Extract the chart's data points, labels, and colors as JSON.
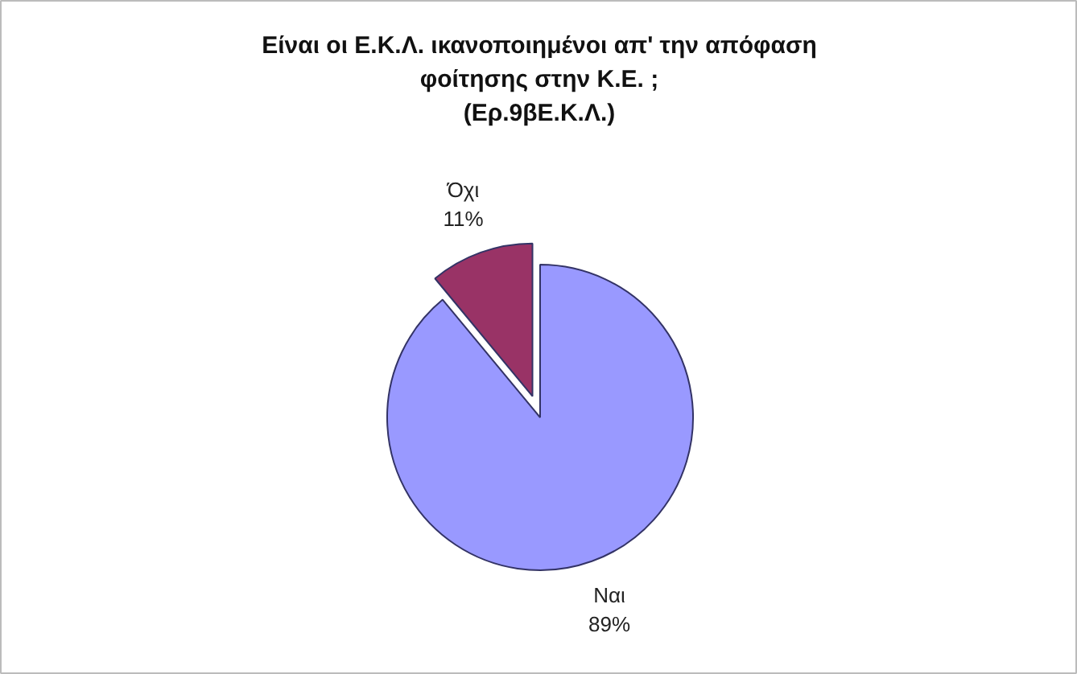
{
  "chart_data": {
    "type": "pie",
    "title": "Είναι οι Ε.Κ.Λ. ικανοποιημένοι απ' την απόφαση φοίτησης στην Κ.Ε. ;",
    "subtitle": "(Ερ.9βΕ.Κ.Λ.)",
    "categories": [
      "Ναι",
      "Όχι"
    ],
    "values": [
      89,
      11
    ],
    "colors": [
      "#9999ff",
      "#993366"
    ],
    "value_labels": [
      "89%",
      "11%"
    ]
  }
}
